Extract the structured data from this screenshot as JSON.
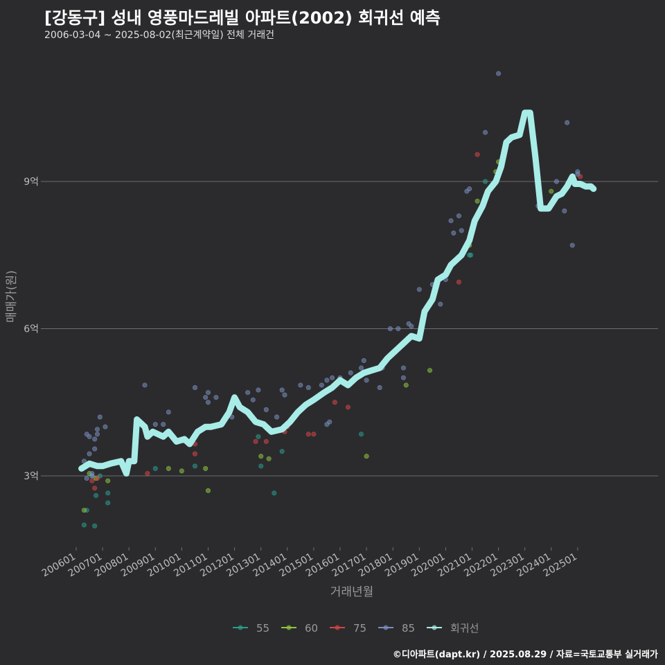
{
  "header": {
    "title": "[강동구] 성내 영풍마드레빌 아파트(2002) 회귀선 예측",
    "subtitle": "2006-03-04 ~ 2025-08-02(최근계약일) 전체 거래건"
  },
  "caption": "©디아파트(dapt.kr) / 2025.08.29 / 자료=국토교통부 실거래가",
  "colors": {
    "background": "#2b2b2d",
    "grid": "#6e6e6e",
    "s55": "#2a9d8f",
    "s60": "#8cc63f",
    "s75": "#d64545",
    "s85": "#7a8fbf",
    "regression": "#a8ece8"
  },
  "chart_data": {
    "type": "scatter",
    "title": "[강동구] 성내 영풍마드레빌 아파트(2002) 회귀선 예측",
    "subtitle": "2006-03-04 ~ 2025-08-02(최근계약일) 전체 거래건",
    "xlabel": "거래년월",
    "ylabel": "매매가(원)",
    "ylim": [
      1.5,
      11.5
    ],
    "xlim": [
      2006.0,
      2025.9
    ],
    "grid": true,
    "legend_position": "bottom",
    "y_ticks": [
      {
        "v": 3,
        "label": "3억"
      },
      {
        "v": 6,
        "label": "6억"
      },
      {
        "v": 9,
        "label": "9억"
      }
    ],
    "x_ticks": [
      "200601",
      "200701",
      "200801",
      "200901",
      "201001",
      "201101",
      "201201",
      "201301",
      "201401",
      "201501",
      "201601",
      "201701",
      "201801",
      "201901",
      "202001",
      "202101",
      "202201",
      "202301",
      "202401",
      "202501"
    ],
    "legend": [
      {
        "key": "s55",
        "label": "55"
      },
      {
        "key": "s60",
        "label": "60"
      },
      {
        "key": "s75",
        "label": "75"
      },
      {
        "key": "s85",
        "label": "85"
      },
      {
        "key": "regression",
        "label": "회귀선"
      }
    ],
    "series": [
      {
        "name": "55",
        "color_key": "s55",
        "points": [
          [
            2006.3,
            2.0
          ],
          [
            2006.4,
            2.3
          ],
          [
            2006.6,
            3.0
          ],
          [
            2006.7,
            1.98
          ],
          [
            2006.75,
            2.6
          ],
          [
            2006.9,
            3.0
          ],
          [
            2007.2,
            2.45
          ],
          [
            2007.2,
            2.65
          ],
          [
            2009.0,
            3.15
          ],
          [
            2010.5,
            3.2
          ],
          [
            2012.9,
            3.8
          ],
          [
            2013.0,
            3.2
          ],
          [
            2013.5,
            2.65
          ],
          [
            2013.8,
            3.5
          ],
          [
            2016.8,
            3.85
          ],
          [
            2020.9,
            7.5
          ],
          [
            2020.95,
            7.5
          ],
          [
            2021.5,
            9.0
          ]
        ]
      },
      {
        "name": "60",
        "color_key": "s60",
        "points": [
          [
            2006.3,
            2.3
          ],
          [
            2006.5,
            3.05
          ],
          [
            2006.75,
            2.95
          ],
          [
            2007.2,
            2.9
          ],
          [
            2007.8,
            3.2
          ],
          [
            2009.5,
            3.15
          ],
          [
            2010.0,
            3.1
          ],
          [
            2010.9,
            3.15
          ],
          [
            2011.0,
            2.7
          ],
          [
            2013.0,
            3.4
          ],
          [
            2013.3,
            3.35
          ],
          [
            2017.0,
            3.4
          ],
          [
            2018.5,
            4.85
          ],
          [
            2019.4,
            5.15
          ],
          [
            2020.9,
            7.7
          ],
          [
            2021.2,
            8.6
          ],
          [
            2021.9,
            9.2
          ],
          [
            2022.0,
            9.4
          ],
          [
            2024.0,
            8.8
          ]
        ]
      },
      {
        "name": "75",
        "color_key": "s75",
        "points": [
          [
            2006.6,
            2.9
          ],
          [
            2006.7,
            2.75
          ],
          [
            2006.8,
            2.95
          ],
          [
            2008.7,
            3.05
          ],
          [
            2010.5,
            3.65
          ],
          [
            2010.5,
            3.45
          ],
          [
            2012.8,
            3.7
          ],
          [
            2013.2,
            3.7
          ],
          [
            2013.9,
            3.9
          ],
          [
            2014.0,
            4.0
          ],
          [
            2014.8,
            3.85
          ],
          [
            2015.0,
            3.85
          ],
          [
            2015.8,
            4.5
          ],
          [
            2016.3,
            4.4
          ],
          [
            2020.5,
            6.95
          ],
          [
            2021.2,
            9.55
          ],
          [
            2024.9,
            8.95
          ],
          [
            2025.1,
            9.1
          ]
        ]
      },
      {
        "name": "85",
        "color_key": "s85",
        "points": [
          [
            2006.3,
            3.3
          ],
          [
            2006.4,
            3.85
          ],
          [
            2006.5,
            3.8
          ],
          [
            2006.5,
            3.45
          ],
          [
            2006.6,
            3.05
          ],
          [
            2006.7,
            3.55
          ],
          [
            2006.7,
            3.75
          ],
          [
            2006.8,
            3.85
          ],
          [
            2006.8,
            3.95
          ],
          [
            2006.9,
            4.2
          ],
          [
            2007.1,
            4.0
          ],
          [
            2006.4,
            2.95
          ],
          [
            2006.6,
            3.0
          ],
          [
            2009.0,
            4.05
          ],
          [
            2008.6,
            4.85
          ],
          [
            2009.5,
            4.3
          ],
          [
            2009.3,
            4.05
          ],
          [
            2010.5,
            4.8
          ],
          [
            2010.9,
            4.6
          ],
          [
            2011.0,
            4.7
          ],
          [
            2011.0,
            4.5
          ],
          [
            2011.3,
            4.6
          ],
          [
            2011.9,
            4.2
          ],
          [
            2012.5,
            4.7
          ],
          [
            2012.7,
            4.55
          ],
          [
            2012.9,
            4.75
          ],
          [
            2013.2,
            4.35
          ],
          [
            2013.6,
            4.2
          ],
          [
            2013.8,
            4.75
          ],
          [
            2013.9,
            4.65
          ],
          [
            2014.5,
            4.85
          ],
          [
            2014.8,
            4.8
          ],
          [
            2015.3,
            4.85
          ],
          [
            2015.5,
            4.95
          ],
          [
            2015.5,
            4.05
          ],
          [
            2015.6,
            4.1
          ],
          [
            2015.7,
            5.0
          ],
          [
            2016.0,
            5.0
          ],
          [
            2016.4,
            5.1
          ],
          [
            2016.8,
            5.2
          ],
          [
            2016.9,
            5.35
          ],
          [
            2017.0,
            4.95
          ],
          [
            2017.5,
            4.8
          ],
          [
            2017.6,
            5.2
          ],
          [
            2017.8,
            5.4
          ],
          [
            2017.9,
            6.0
          ],
          [
            2018.2,
            6.0
          ],
          [
            2018.4,
            5.2
          ],
          [
            2018.4,
            5.0
          ],
          [
            2018.6,
            6.1
          ],
          [
            2018.7,
            6.05
          ],
          [
            2019.0,
            6.8
          ],
          [
            2019.2,
            6.35
          ],
          [
            2019.5,
            6.9
          ],
          [
            2019.8,
            6.5
          ],
          [
            2020.0,
            7.0
          ],
          [
            2020.2,
            8.2
          ],
          [
            2020.3,
            7.95
          ],
          [
            2020.5,
            8.3
          ],
          [
            2020.6,
            8.0
          ],
          [
            2020.8,
            8.8
          ],
          [
            2020.9,
            8.85
          ],
          [
            2021.5,
            10.0
          ],
          [
            2022.0,
            11.2
          ],
          [
            2023.5,
            8.5
          ],
          [
            2024.2,
            9.0
          ],
          [
            2024.5,
            8.4
          ],
          [
            2024.6,
            10.2
          ],
          [
            2024.8,
            7.7
          ],
          [
            2025.0,
            9.2
          ],
          [
            2025.0,
            9.15
          ]
        ]
      }
    ],
    "regression": {
      "name": "회귀선",
      "points": [
        [
          2006.2,
          3.15
        ],
        [
          2006.5,
          3.25
        ],
        [
          2006.8,
          3.2
        ],
        [
          2007.0,
          3.2
        ],
        [
          2007.3,
          3.25
        ],
        [
          2007.7,
          3.3
        ],
        [
          2007.9,
          3.05
        ],
        [
          2008.0,
          3.3
        ],
        [
          2008.2,
          3.3
        ],
        [
          2008.3,
          4.15
        ],
        [
          2008.6,
          4.0
        ],
        [
          2008.7,
          3.8
        ],
        [
          2008.9,
          3.9
        ],
        [
          2009.3,
          3.8
        ],
        [
          2009.5,
          3.9
        ],
        [
          2009.8,
          3.7
        ],
        [
          2010.1,
          3.75
        ],
        [
          2010.3,
          3.65
        ],
        [
          2010.6,
          3.9
        ],
        [
          2010.9,
          4.0
        ],
        [
          2011.1,
          4.0
        ],
        [
          2011.5,
          4.05
        ],
        [
          2011.8,
          4.3
        ],
        [
          2012.0,
          4.6
        ],
        [
          2012.2,
          4.4
        ],
        [
          2012.5,
          4.3
        ],
        [
          2012.8,
          4.1
        ],
        [
          2013.1,
          4.05
        ],
        [
          2013.4,
          3.9
        ],
        [
          2013.8,
          3.95
        ],
        [
          2014.1,
          4.1
        ],
        [
          2014.4,
          4.3
        ],
        [
          2014.7,
          4.45
        ],
        [
          2015.0,
          4.55
        ],
        [
          2015.4,
          4.7
        ],
        [
          2015.7,
          4.8
        ],
        [
          2016.0,
          4.95
        ],
        [
          2016.3,
          4.85
        ],
        [
          2016.6,
          5.0
        ],
        [
          2016.9,
          5.1
        ],
        [
          2017.2,
          5.15
        ],
        [
          2017.5,
          5.2
        ],
        [
          2017.8,
          5.4
        ],
        [
          2018.1,
          5.55
        ],
        [
          2018.4,
          5.7
        ],
        [
          2018.7,
          5.85
        ],
        [
          2019.0,
          5.8
        ],
        [
          2019.2,
          6.35
        ],
        [
          2019.5,
          6.6
        ],
        [
          2019.7,
          7.0
        ],
        [
          2020.0,
          7.1
        ],
        [
          2020.2,
          7.3
        ],
        [
          2020.6,
          7.5
        ],
        [
          2020.9,
          7.8
        ],
        [
          2021.1,
          8.2
        ],
        [
          2021.4,
          8.5
        ],
        [
          2021.6,
          8.8
        ],
        [
          2021.9,
          9.0
        ],
        [
          2022.1,
          9.3
        ],
        [
          2022.3,
          9.8
        ],
        [
          2022.5,
          9.9
        ],
        [
          2022.8,
          9.95
        ],
        [
          2023.0,
          10.4
        ],
        [
          2023.2,
          10.4
        ],
        [
          2023.4,
          9.5
        ],
        [
          2023.6,
          8.45
        ],
        [
          2023.9,
          8.45
        ],
        [
          2024.2,
          8.7
        ],
        [
          2024.4,
          8.75
        ],
        [
          2024.6,
          8.9
        ],
        [
          2024.8,
          9.1
        ],
        [
          2024.9,
          8.95
        ],
        [
          2025.1,
          8.95
        ],
        [
          2025.3,
          8.9
        ],
        [
          2025.5,
          8.9
        ],
        [
          2025.6,
          8.85
        ]
      ]
    }
  }
}
